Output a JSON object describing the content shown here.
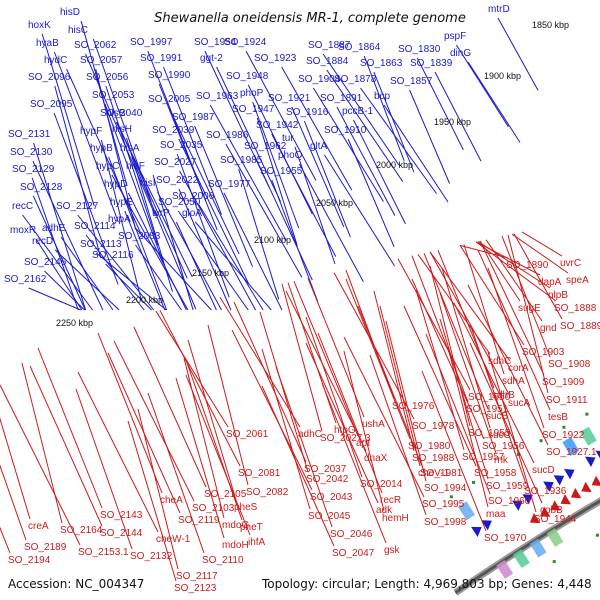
{
  "title": "Shewanella oneidensis MR-1, complete genome",
  "footer": {
    "accession": "Accession: NC_004347",
    "summary": "Topology: circular; Length: 4,969,803 bp; Genes: 4,448"
  },
  "colors": {
    "forward": "#1a1acc",
    "reverse": "#cc1a1a",
    "backbone": "#555555",
    "tick": "#2a8a2a"
  },
  "scale_labels": [
    "1850 kbp",
    "1900 kbp",
    "1950 kbp",
    "2000 kbp",
    "2050 kbp",
    "2100 kbp",
    "2150 kbp",
    "2200 kbp",
    "2250 kbp"
  ],
  "blue_labels": [
    "mtrD",
    "hisD",
    "hoxK",
    "hisC",
    "hyaB",
    "SO_2062",
    "hydC",
    "SO_2057",
    "SO_2096",
    "SO_2056",
    "SO_2053",
    "SO_2095",
    "SO_2040",
    "hisB",
    "hypF",
    "hisH",
    "SO_2131",
    "hypB",
    "hisA",
    "SO_2130",
    "hypC",
    "hisF",
    "SO_2129",
    "SO_2128",
    "hypD",
    "hisI",
    "recC",
    "SO_2127",
    "hypE",
    "moxR",
    "adhE",
    "SO_2114",
    "recD",
    "SO_2113",
    "hypA",
    "SO_2146",
    "SO_2116",
    "SO_2162",
    "SO_1997",
    "SO_1954",
    "SO_1924",
    "SO_1887",
    "SO_1864",
    "SO_1830",
    "pspF",
    "SO_1991",
    "ggt-2",
    "SO_1923",
    "SO_1884",
    "SO_1863",
    "SO_1839",
    "dinG",
    "SO_1990",
    "SO_1948",
    "SO_1904",
    "SO_1878",
    "SO_1857",
    "phoP",
    "SO_1921",
    "SO_1891",
    "bcp",
    "SO_2005",
    "SO_1963",
    "SO_1947",
    "SO_1916",
    "pccB-1",
    "SO_1987",
    "SO_1942",
    "SO_2039",
    "SO_1986",
    "tur",
    "SO_1910",
    "SO_2035",
    "SO_1962",
    "phoQ",
    "gltA",
    "SO_2027",
    "SO_1985",
    "SO_1955",
    "SO_2022",
    "SO_1977",
    "SO_2006",
    "SO_2050",
    "gloA",
    "tyrP",
    "SO_2083"
  ],
  "red_labels": [
    "uvrC",
    "SO_1890",
    "speA",
    "dapA",
    "nlpB",
    "SO_1888",
    "sugE",
    "SO_1889",
    "gnd",
    "SO_1903",
    "sdhC",
    "corA",
    "sdhA",
    "SO_1908",
    "sdhB",
    "SO_1909",
    "SO_1950",
    "sucA",
    "SO_1911",
    "SO_1976",
    "SO_1951",
    "sucB",
    "tesB",
    "SO_1978",
    "SO_1953",
    "sucC",
    "SO_1922",
    "SO_1980",
    "SO_1956",
    "SO_1927.1",
    "SO_1988",
    "SO_1957",
    "rnk",
    "SO_1981",
    "SO_1958",
    "sucD",
    "SO_1994",
    "SO_1959",
    "SO_1936",
    "SO_1960",
    "cobB",
    "SO_1995",
    "maa",
    "SO_1944",
    "SO_1998",
    "SO_1970",
    "SO_2061",
    "adhC",
    "SO_2027.3",
    "htpG",
    "ushA",
    "apt",
    "SO_2037",
    "dnaX",
    "cheV-1",
    "SO_2042",
    "SO_2014",
    "recR",
    "adk",
    "SO_2043",
    "hemH",
    "SO_2045",
    "SO_2046",
    "gsk",
    "SO_2047",
    "SO_2081",
    "SO_2082",
    "pheS",
    "pheT",
    "ihfA",
    "SO_2105",
    "SO_2103",
    "mdoG",
    "mdoH",
    "SO_2110",
    "cheA",
    "SO_2119",
    "cheW-1",
    "SO_2117",
    "SO_2123",
    "SO_2132",
    "SO_2143",
    "SO_2144",
    "SO_2153.1",
    "SO_2164",
    "creA",
    "SO_2189",
    "SO_2194"
  ]
}
